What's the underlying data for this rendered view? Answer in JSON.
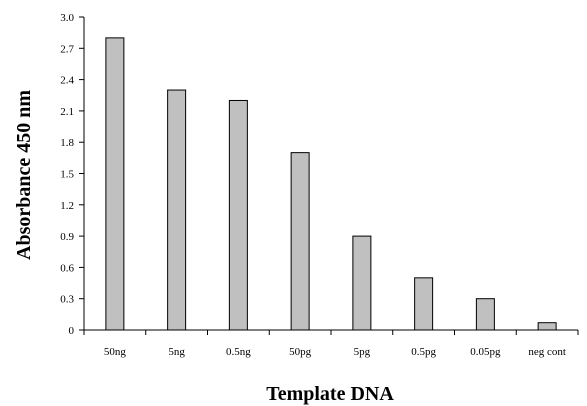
{
  "chart_data": {
    "type": "bar",
    "title": "",
    "xlabel": "Template DNA",
    "ylabel": "Absorbance 450 nm",
    "categories": [
      "50ng",
      "5ng",
      "0.5ng",
      "50pg",
      "5pg",
      "0.5pg",
      "0.05pg",
      "neg cont"
    ],
    "values": [
      2.8,
      2.3,
      2.2,
      1.7,
      0.9,
      0.5,
      0.3,
      0.07
    ],
    "ylim": [
      0,
      3.0
    ],
    "yticks": [
      "0",
      "0.3",
      "0.6",
      "0.9",
      "1.2",
      "1.5",
      "1.8",
      "2.1",
      "2.4",
      "2.7",
      "3.0"
    ],
    "grid": false,
    "legend": "none",
    "colors": {
      "bar_fill": "#c0c0c0",
      "bar_stroke": "#000000"
    }
  }
}
